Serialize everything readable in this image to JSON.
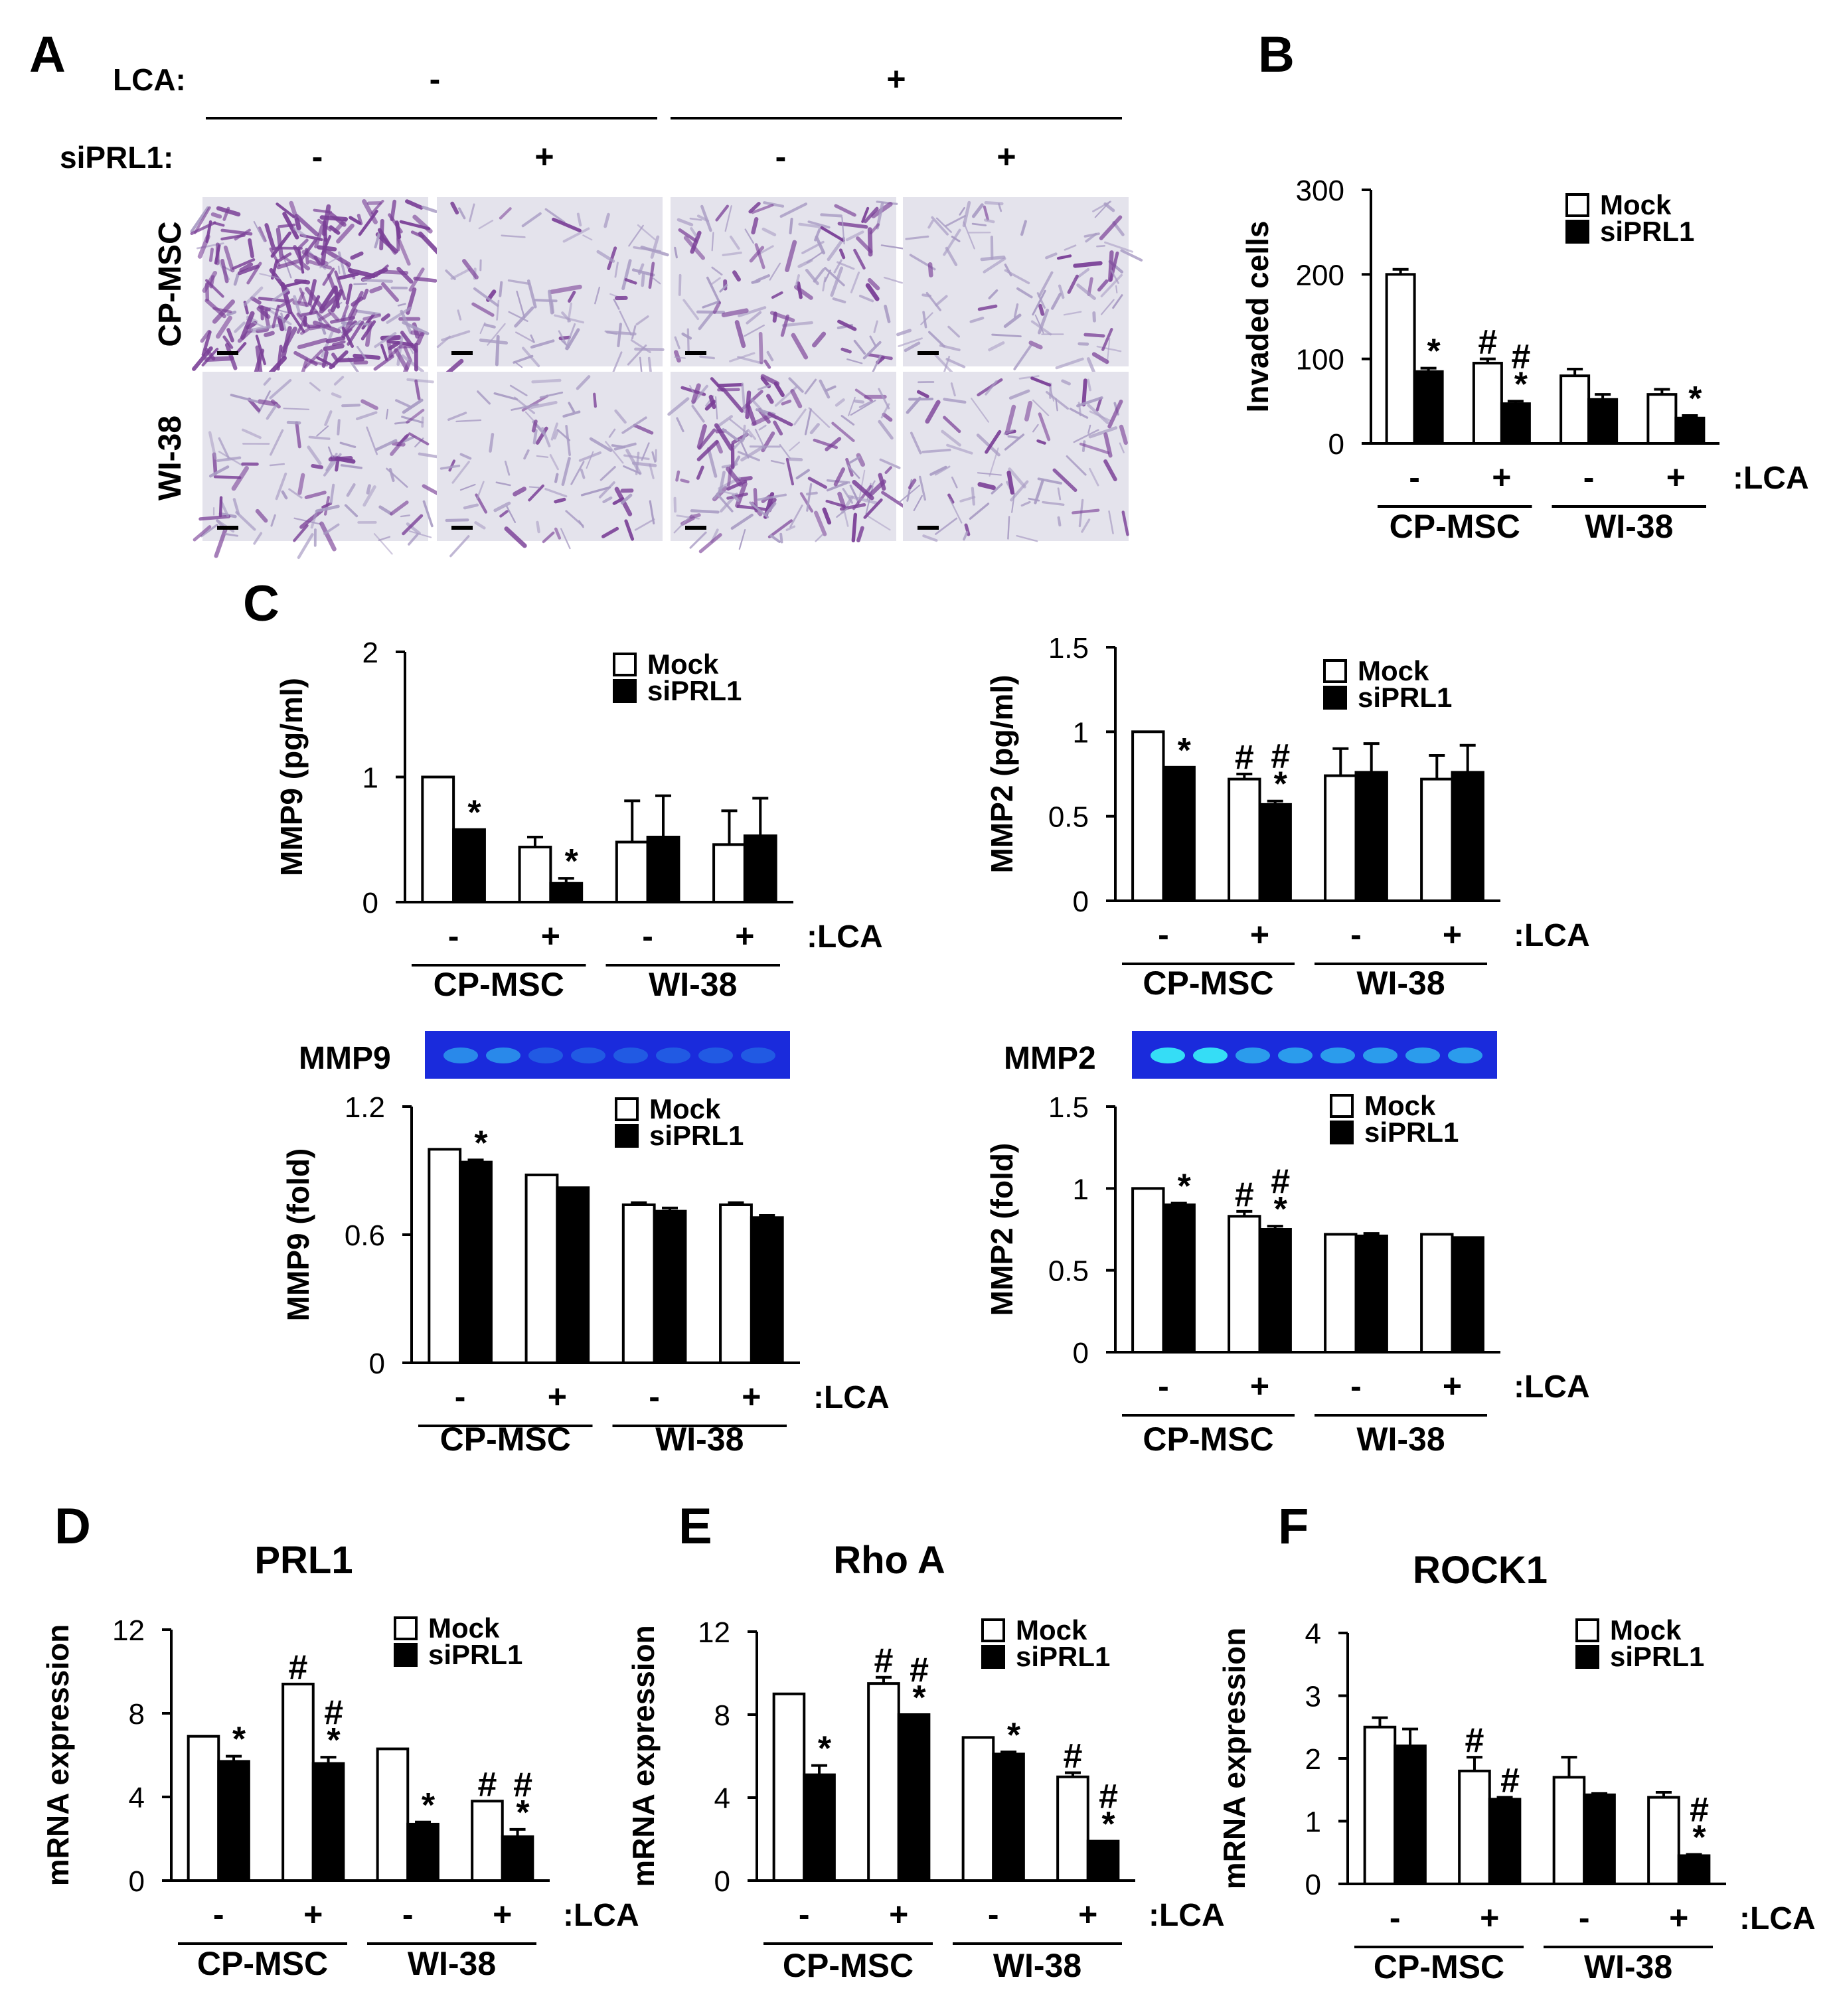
{
  "panel_labels": {
    "A": "A",
    "B": "B",
    "C": "C",
    "D": "D",
    "E": "E",
    "F": "F"
  },
  "panel_a": {
    "lca_label": "LCA:",
    "sirpl1_label": "siPRL1:",
    "lca_values": [
      "-",
      "+"
    ],
    "sirpl1_values": [
      "-",
      "+",
      "-",
      "+"
    ],
    "row_labels": [
      "CP-MSC",
      "WI-38"
    ],
    "stain_intensity": [
      [
        0.85,
        0.18,
        0.3,
        0.22
      ],
      [
        0.28,
        0.2,
        0.5,
        0.22
      ]
    ]
  },
  "gel": {
    "mmp9_label": "MMP9",
    "mmp2_label": "MMP2"
  },
  "chart_data": [
    {
      "id": "B",
      "type": "bar",
      "title": "",
      "xlabel": "",
      "ylabel": "Invaded cells",
      "ylim": [
        0,
        300
      ],
      "yticks": [
        "0",
        "100",
        "200",
        "300"
      ],
      "groups": [
        "CP-MSC",
        "WI-38"
      ],
      "lca": [
        "-",
        "+",
        "-",
        "+"
      ],
      "lca_suffix": ":LCA",
      "legend": "top-right",
      "series": [
        {
          "name": "Mock",
          "values": [
            200,
            95,
            80,
            58
          ],
          "errors": [
            6,
            5,
            8,
            6
          ],
          "marks": [
            "",
            "#",
            "",
            ""
          ]
        },
        {
          "name": "siPRL1",
          "values": [
            85,
            47,
            52,
            30
          ],
          "errors": [
            4,
            3,
            6,
            3
          ],
          "marks": [
            "*",
            "#\n*",
            "",
            "*"
          ]
        }
      ]
    },
    {
      "id": "C1",
      "type": "bar",
      "title": "",
      "xlabel": "",
      "ylabel": "MMP9 (pg/ml)",
      "ylim": [
        0,
        2
      ],
      "yticks": [
        "0",
        "1",
        "2"
      ],
      "groups": [
        "CP-MSC",
        "WI-38"
      ],
      "lca": [
        "-",
        "+",
        "-",
        "+"
      ],
      "lca_suffix": ":LCA",
      "legend": "top-right",
      "series": [
        {
          "name": "Mock",
          "values": [
            1.0,
            0.44,
            0.48,
            0.46
          ],
          "errors": [
            0,
            0.08,
            0.33,
            0.27
          ],
          "marks": [
            "",
            "",
            "",
            ""
          ]
        },
        {
          "name": "siPRL1",
          "values": [
            0.58,
            0.15,
            0.52,
            0.53
          ],
          "errors": [
            0,
            0.04,
            0.33,
            0.3
          ],
          "marks": [
            "*",
            "*",
            "",
            ""
          ]
        }
      ]
    },
    {
      "id": "C2",
      "type": "bar",
      "title": "",
      "xlabel": "",
      "ylabel": "MMP2 (pg/ml)",
      "ylim": [
        0,
        1.5
      ],
      "yticks": [
        "0",
        "0.5",
        "1",
        "1.5"
      ],
      "groups": [
        "CP-MSC",
        "WI-38"
      ],
      "lca": [
        "-",
        "+",
        "-",
        "+"
      ],
      "lca_suffix": ":LCA",
      "legend": "top-right",
      "series": [
        {
          "name": "Mock",
          "values": [
            1.0,
            0.72,
            0.74,
            0.72
          ],
          "errors": [
            0,
            0.03,
            0.16,
            0.14
          ],
          "marks": [
            "",
            "#",
            "",
            ""
          ]
        },
        {
          "name": "siPRL1",
          "values": [
            0.79,
            0.57,
            0.76,
            0.76
          ],
          "errors": [
            0,
            0.02,
            0.17,
            0.16
          ],
          "marks": [
            "*",
            "#\n*",
            "",
            ""
          ]
        }
      ]
    },
    {
      "id": "C3",
      "type": "bar",
      "title": "",
      "xlabel": "",
      "ylabel": "MMP9 (fold)",
      "ylim": [
        0,
        1.2
      ],
      "yticks": [
        "0",
        "0.6",
        "1.2"
      ],
      "groups": [
        "CP-MSC",
        "WI-38"
      ],
      "lca": [
        "-",
        "+",
        "-",
        "+"
      ],
      "lca_suffix": ":LCA",
      "legend": "top-right",
      "series": [
        {
          "name": "Mock",
          "values": [
            1.0,
            0.88,
            0.74,
            0.74
          ],
          "errors": [
            0,
            0,
            0.01,
            0.01
          ],
          "marks": [
            "",
            "",
            "",
            ""
          ]
        },
        {
          "name": "siPRL1",
          "values": [
            0.94,
            0.82,
            0.71,
            0.68
          ],
          "errors": [
            0.01,
            0,
            0.015,
            0.01
          ],
          "marks": [
            "*",
            "",
            "",
            ""
          ]
        }
      ]
    },
    {
      "id": "C4",
      "type": "bar",
      "title": "",
      "xlabel": "",
      "ylabel": "MMP2 (fold)",
      "ylim": [
        0,
        1.5
      ],
      "yticks": [
        "0",
        "0.5",
        "1",
        "1.5"
      ],
      "groups": [
        "CP-MSC",
        "WI-38"
      ],
      "lca": [
        "-",
        "+",
        "-",
        "+"
      ],
      "lca_suffix": ":LCA",
      "legend": "top-right",
      "series": [
        {
          "name": "Mock",
          "values": [
            1.0,
            0.83,
            0.72,
            0.72
          ],
          "errors": [
            0,
            0.03,
            0,
            0
          ],
          "marks": [
            "",
            "#",
            "",
            ""
          ]
        },
        {
          "name": "siPRL1",
          "values": [
            0.9,
            0.75,
            0.71,
            0.7
          ],
          "errors": [
            0.01,
            0.02,
            0.015,
            0
          ],
          "marks": [
            "*",
            "#\n*",
            "",
            ""
          ]
        }
      ]
    },
    {
      "id": "D",
      "type": "bar",
      "title": "PRL1",
      "xlabel": "",
      "ylabel": "mRNA expression",
      "ylim": [
        0,
        12
      ],
      "yticks": [
        "0",
        "4",
        "8",
        "12"
      ],
      "groups": [
        "CP-MSC",
        "WI-38"
      ],
      "lca": [
        "-",
        "+",
        "-",
        "+"
      ],
      "lca_suffix": ":LCA",
      "legend": "top-right",
      "series": [
        {
          "name": "Mock",
          "values": [
            6.9,
            9.4,
            6.3,
            3.8
          ],
          "errors": [
            0,
            0,
            0,
            0
          ],
          "marks": [
            "",
            "#",
            "",
            "#"
          ]
        },
        {
          "name": "siPRL1",
          "values": [
            5.7,
            5.6,
            2.7,
            2.1
          ],
          "errors": [
            0.25,
            0.3,
            0.1,
            0.35
          ],
          "marks": [
            "*",
            "#\n*",
            "*",
            "#\n*"
          ]
        }
      ]
    },
    {
      "id": "E",
      "type": "bar",
      "title": "Rho A",
      "xlabel": "",
      "ylabel": "mRNA expression",
      "ylim": [
        0,
        12
      ],
      "yticks": [
        "0",
        "4",
        "8",
        "12"
      ],
      "groups": [
        "CP-MSC",
        "WI-38"
      ],
      "lca": [
        "-",
        "+",
        "-",
        "+"
      ],
      "lca_suffix": ":LCA",
      "legend": "top-right",
      "series": [
        {
          "name": "Mock",
          "values": [
            9.0,
            9.5,
            6.9,
            5.0
          ],
          "errors": [
            0,
            0.3,
            0,
            0.2
          ],
          "marks": [
            "",
            "#",
            "",
            "#"
          ]
        },
        {
          "name": "siPRL1",
          "values": [
            5.1,
            8.0,
            6.1,
            1.9
          ],
          "errors": [
            0.45,
            0,
            0.1,
            0
          ],
          "marks": [
            "*",
            "#\n*",
            "*",
            "#\n*"
          ]
        }
      ]
    },
    {
      "id": "F",
      "type": "bar",
      "title": "ROCK1",
      "xlabel": "",
      "ylabel": "mRNA expression",
      "ylim": [
        0,
        4
      ],
      "yticks": [
        "0",
        "1",
        "2",
        "3",
        "4"
      ],
      "groups": [
        "CP-MSC",
        "WI-38"
      ],
      "lca": [
        "-",
        "+",
        "-",
        "+"
      ],
      "lca_suffix": ":LCA",
      "legend": "top-right",
      "series": [
        {
          "name": "Mock",
          "values": [
            2.5,
            1.8,
            1.7,
            1.38
          ],
          "errors": [
            0.15,
            0.22,
            0.32,
            0.08
          ],
          "marks": [
            "",
            "#",
            "",
            ""
          ]
        },
        {
          "name": "siPRL1",
          "values": [
            2.2,
            1.35,
            1.42,
            0.45
          ],
          "errors": [
            0.27,
            0.03,
            0.02,
            0.02
          ],
          "marks": [
            "",
            "#",
            "",
            "#\n*"
          ]
        }
      ]
    }
  ]
}
